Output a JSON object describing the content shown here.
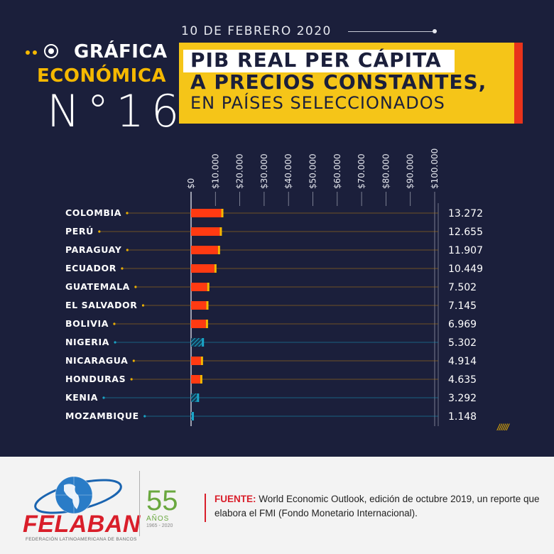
{
  "header": {
    "date": "10 DE FEBRERO 2020",
    "label_line1": "GRÁFICA",
    "label_line2": "ECONÓMICA",
    "label_number": "N°16",
    "title_line1": "PIB REAL PER CÁPITA",
    "title_line2": "A PRECIOS CONSTANTES,",
    "title_line3": "EN PAÍSES SELECCIONADOS"
  },
  "colors": {
    "background": "#1b1f3b",
    "accent_yellow": "#f5c518",
    "accent_red": "#e8331b",
    "bar_main": "#ff3a12",
    "bar_tip": "#f5b800",
    "bar_africa": "#1aa6c8",
    "footer_bg": "#f3f3f3"
  },
  "chart_data": {
    "type": "bar",
    "orientation": "horizontal",
    "categories": [
      "COLOMBIA",
      "PERÚ",
      "PARAGUAY",
      "ECUADOR",
      "GUATEMALA",
      "EL SALVADOR",
      "BOLIVIA",
      "NIGERIA",
      "NICARAGUA",
      "HONDURAS",
      "KENIA",
      "MOZAMBIQUE"
    ],
    "values": [
      13272,
      12655,
      11907,
      10449,
      7502,
      7145,
      6969,
      5302,
      4914,
      4635,
      3292,
      1148
    ],
    "value_labels": [
      "13.272",
      "12.655",
      "11.907",
      "10.449",
      "7.502",
      "7.145",
      "6.969",
      "5.302",
      "4.914",
      "4.635",
      "3.292",
      "1.148"
    ],
    "highlight": [
      "latam",
      "latam",
      "latam",
      "latam",
      "latam",
      "latam",
      "latam",
      "africa",
      "latam",
      "latam",
      "africa",
      "africa"
    ],
    "ticks": [
      0,
      10000,
      20000,
      30000,
      40000,
      50000,
      60000,
      70000,
      80000,
      90000,
      100000
    ],
    "tick_labels": [
      "$0",
      "$10.000",
      "$20.000",
      "$30.000",
      "$40.000",
      "$50.000",
      "$60.000",
      "$70.000",
      "$80.000",
      "$90.000",
      "$100.000"
    ],
    "xlim": [
      0,
      100000
    ],
    "grid": true,
    "title": "PIB REAL PER CÁPITA A PRECIOS CONSTANTES, EN PAÍSES SELECCIONADOS"
  },
  "footer": {
    "logo_word": "FELABAN",
    "logo_sub": "FEDERACIÓN LATINOAMERICANA DE BANCOS",
    "anniv_number": "55",
    "anniv_word": "AÑOS",
    "anniv_years": "1965 - 2020",
    "source_label": "FUENTE:",
    "source_text": "World Economic Outlook, edición de octubre 2019, un reporte que elabora el FMI (Fondo Monetario Internacional)."
  },
  "decor": {
    "slashes": "//////"
  }
}
